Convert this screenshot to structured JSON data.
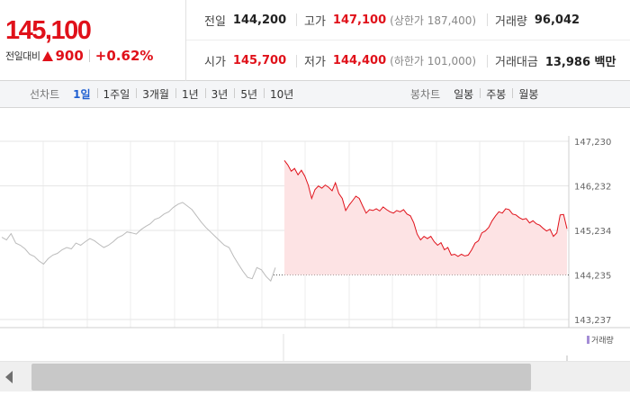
{
  "quote": {
    "price": "145,100",
    "change_label": "전일대비",
    "change_value": "900",
    "change_rate": "+0.62%",
    "direction_icon": "triangle-up-icon",
    "up_color": "#e0111a"
  },
  "stats": {
    "prev_close": {
      "label": "전일",
      "value": "144,200"
    },
    "high": {
      "label": "고가",
      "value": "147,100",
      "sub": "(상한가 187,400)"
    },
    "volume": {
      "label": "거래량",
      "value": "96,042"
    },
    "open": {
      "label": "시가",
      "value": "145,700"
    },
    "low": {
      "label": "저가",
      "value": "144,400",
      "sub": "(하한가 101,000)"
    },
    "trade_amount": {
      "label": "거래대금",
      "value": "13,986 백만"
    }
  },
  "line_tabs": {
    "label": "선차트",
    "items": [
      "1일",
      "1주일",
      "3개월",
      "1년",
      "3년",
      "5년",
      "10년"
    ],
    "active": "1일"
  },
  "candle_tabs": {
    "label": "봉차트",
    "items": [
      "일봉",
      "주봉",
      "월봉"
    ]
  },
  "volume_legend": "거래량",
  "chart_data": {
    "type": "line",
    "title": "",
    "y_ticks": [
      "147,230",
      "146,232",
      "145,234",
      "144,235",
      "143,237"
    ],
    "y_tick_values": [
      147230,
      146232,
      145234,
      144235,
      143237
    ],
    "ylim": [
      143237,
      147230
    ],
    "baseline": 144235,
    "grid": true,
    "series": [
      {
        "segment": "prior",
        "color": "#bbbbbb",
        "values": [
          145080,
          145020,
          145160,
          144950,
          144900,
          144820,
          144700,
          144650,
          144550,
          144480,
          144600,
          144680,
          144720,
          144800,
          144850,
          144820,
          144950,
          144900,
          144980,
          145050,
          145000,
          144920,
          144850,
          144900,
          144980,
          145070,
          145120,
          145200,
          145180,
          145150,
          145250,
          145320,
          145380,
          145480,
          145520,
          145600,
          145650,
          145750,
          145820,
          145860,
          145780,
          145700,
          145560,
          145420,
          145300,
          145200,
          145100,
          145000,
          144900,
          144850,
          144650,
          144480,
          144320,
          144180,
          144150,
          144400,
          144350,
          144200,
          144100,
          144400
        ]
      },
      {
        "segment": "today",
        "color": "#e0111a",
        "values": [
          146800,
          146700,
          146560,
          146620,
          146480,
          146580,
          146450,
          146250,
          145950,
          146150,
          146230,
          146180,
          146250,
          146200,
          146120,
          146300,
          146060,
          145950,
          145680,
          145800,
          145900,
          146000,
          145950,
          145780,
          145620,
          145700,
          145680,
          145720,
          145670,
          145760,
          145700,
          145650,
          145620,
          145680,
          145650,
          145700,
          145600,
          145560,
          145400,
          145150,
          145020,
          145100,
          145050,
          145100,
          144980,
          144900,
          144960,
          144800,
          144850,
          144680,
          144700,
          144650,
          144700,
          144660,
          144680,
          144800,
          144950,
          145000,
          145180,
          145220,
          145300,
          145450,
          145560,
          145650,
          145620,
          145720,
          145700,
          145600,
          145580,
          145520,
          145480,
          145500,
          145400,
          145450,
          145380,
          145350,
          145280,
          145220,
          145260,
          145100,
          145180,
          145580,
          145590,
          145270
        ]
      }
    ]
  }
}
